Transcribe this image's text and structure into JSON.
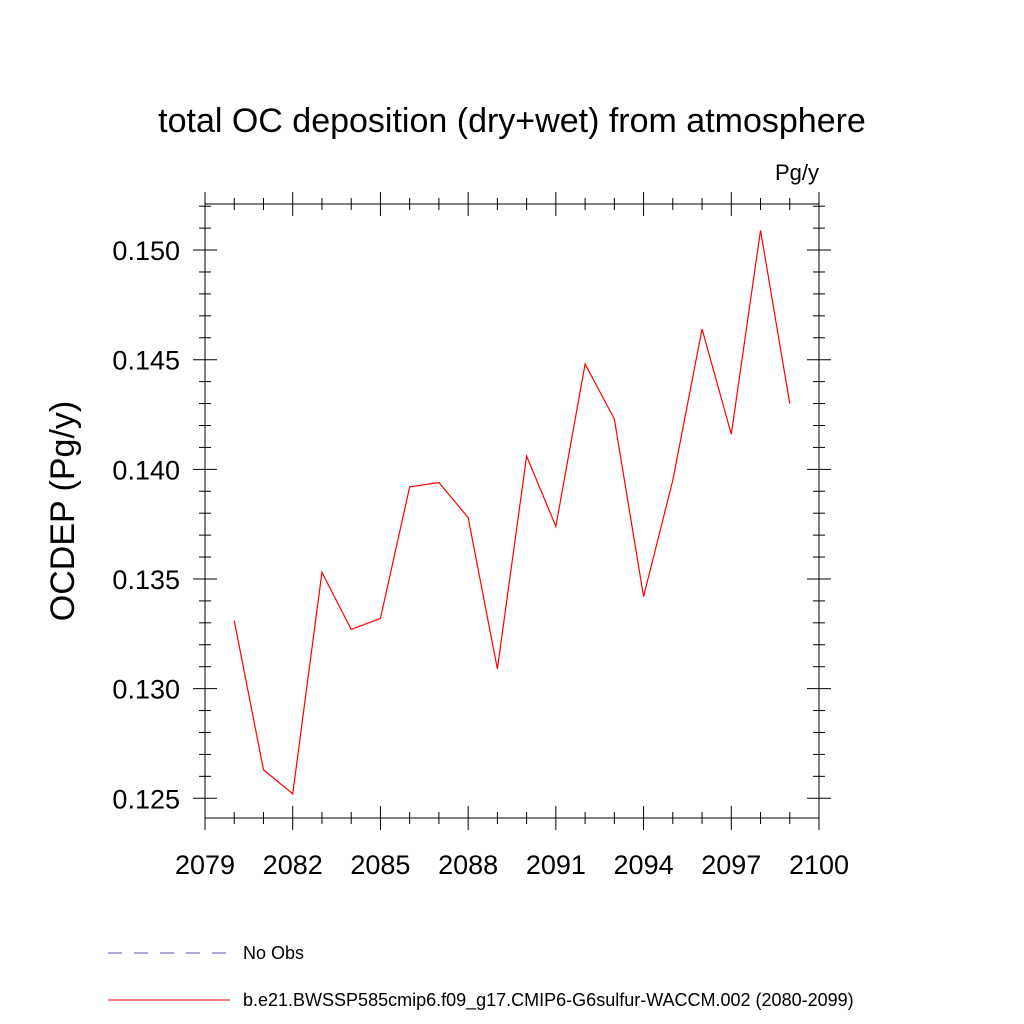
{
  "chart_data": {
    "type": "line",
    "title": "total OC deposition (dry+wet) from atmosphere",
    "units_label": "Pg/y",
    "xlabel": "",
    "ylabel": "OCDEP  (Pg/y)",
    "xlim": [
      2079,
      2100
    ],
    "ylim": [
      0.1241,
      0.1521
    ],
    "x_ticks": [
      2079,
      2082,
      2085,
      2088,
      2091,
      2094,
      2097,
      2100
    ],
    "x_tick_labels": [
      "2079",
      "2082",
      "2085",
      "2088",
      "2091",
      "2094",
      "2097",
      "2100"
    ],
    "y_ticks": [
      0.125,
      0.13,
      0.135,
      0.14,
      0.145,
      0.15
    ],
    "y_tick_labels": [
      "0.125",
      "0.130",
      "0.135",
      "0.140",
      "0.145",
      "0.150"
    ],
    "grid": false,
    "legend_position": "bottom",
    "series": [
      {
        "name": "b.e21.BWSSP585cmip6.f09_g17.CMIP6-G6sulfur-WACCM.002 (2080-2099)",
        "color": "#ff0000",
        "style": "solid",
        "x": [
          2080,
          2081,
          2082,
          2083,
          2084,
          2085,
          2086,
          2087,
          2088,
          2089,
          2090,
          2091,
          2092,
          2093,
          2094,
          2095,
          2096,
          2097,
          2098,
          2099
        ],
        "values": [
          0.1331,
          0.1263,
          0.1252,
          0.1353,
          0.1327,
          0.1332,
          0.1392,
          0.1394,
          0.1378,
          0.1309,
          0.1406,
          0.1374,
          0.1448,
          0.1423,
          0.1342,
          0.1395,
          0.1464,
          0.1416,
          0.1509,
          0.143
        ]
      }
    ],
    "legend": [
      {
        "label": "No Obs",
        "color": "#5a50b4",
        "style": "dashed"
      },
      {
        "label": "b.e21.BWSSP585cmip6.f09_g17.CMIP6-G6sulfur-WACCM.002 (2080-2099)",
        "color": "#ff0000",
        "style": "solid"
      }
    ]
  }
}
